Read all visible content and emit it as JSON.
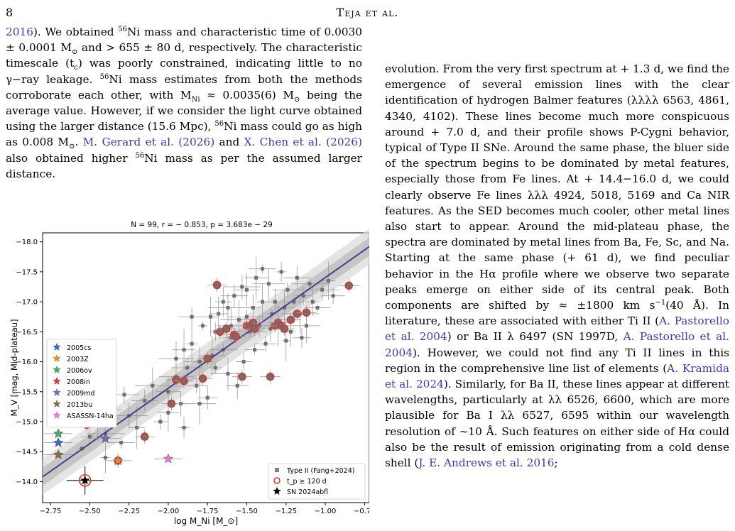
{
  "header": {
    "page_number": "8",
    "title": "Teja et al."
  },
  "left_column": [
    {
      "t": "cite",
      "v": "2016"
    },
    {
      "t": "text",
      "v": "). We obtained "
    },
    {
      "t": "sup",
      "v": "56"
    },
    {
      "t": "text",
      "v": "Ni mass and characteristic time of 0.0030 ± 0.0001 M"
    },
    {
      "t": "sub",
      "v": "⊙"
    },
    {
      "t": "text",
      "v": " and > 655 ± 80 d, respectively. The characteristic timescale (t"
    },
    {
      "t": "sub",
      "v": "c"
    },
    {
      "t": "text",
      "v": ") was poorly constrained, indicating little to no γ−ray leakage. "
    },
    {
      "t": "sup",
      "v": "56"
    },
    {
      "t": "text",
      "v": "Ni mass estimates from both the methods corroborate each other, with M"
    },
    {
      "t": "sub",
      "v": "Ni"
    },
    {
      "t": "text",
      "v": " ≈ 0.0035(6) M"
    },
    {
      "t": "sub",
      "v": "⊙"
    },
    {
      "t": "text",
      "v": " being the average value. However, if we consider the light curve obtained using the larger distance (15.6 Mpc), "
    },
    {
      "t": "sup",
      "v": "56"
    },
    {
      "t": "text",
      "v": "Ni mass could go as high as 0.008 M"
    },
    {
      "t": "sub",
      "v": "⊙"
    },
    {
      "t": "text",
      "v": ". "
    },
    {
      "t": "cite",
      "v": "M. Gerard et al. (2026)"
    },
    {
      "t": "text",
      "v": " and "
    },
    {
      "t": "cite",
      "v": "X. Chen et al. (2026)"
    },
    {
      "t": "text",
      "v": " also obtained higher "
    },
    {
      "t": "sup",
      "v": "56"
    },
    {
      "t": "text",
      "v": "Ni mass as per the assumed larger distance."
    }
  ],
  "right_column": [
    {
      "t": "text",
      "v": "evolution. From the very first spectrum at + 1.3 d, we find the emergence of several emission lines with the clear identification of hydrogen Balmer features (λλλλ 6563, 4861, 4340, 4102). These lines become much more conspicuous around + 7.0 d, and their profile shows P-Cygni behavior, typical of Type II SNe. Around the same phase, the bluer side of the spectrum begins to be dominated by metal features, especially those from Fe lines. At + 14.4−16.0 d, we could clearly observe Fe lines λλλ 4924, 5018, 5169 and Ca NIR features. As the SED becomes much cooler, other metal lines also start to appear. Around the mid-plateau phase, the spectra are dominated by metal lines from Ba, Fe, Sc, and Na. Starting at the same phase (+ 61 d), we find peculiar behavior in the Hα profile where we observe two separate peaks emerge on either side of its central peak. Both components are shifted by ≈ ±1800 km s"
    },
    {
      "t": "sup",
      "v": "−1"
    },
    {
      "t": "text",
      "v": "(40 Å). In literature, these are associated with either Ti II ("
    },
    {
      "t": "cite",
      "v": "A. Pastorello et al. 2004"
    },
    {
      "t": "text",
      "v": ") or Ba II λ 6497 (SN 1997D, "
    },
    {
      "t": "cite",
      "v": "A. Pastorello et al. 2004"
    },
    {
      "t": "text",
      "v": "). However, we could not find any Ti II lines in this region in the comprehensive line list of elements ("
    },
    {
      "t": "cite",
      "v": "A. Kramida et al. 2024"
    },
    {
      "t": "text",
      "v": "). Similarly, for Ba II, these lines appear at different wavelengths, particularly at λλ 6526, 6600, which are more plausible for Ba I λλ 6527, 6595 within our wavelength resolution of ∼10 Å. Such features on either side of Hα could also be the result of emission originating from a cold dense shell ("
    },
    {
      "t": "cite",
      "v": "J. E. Andrews et al. 2016"
    },
    {
      "t": "text",
      "v": ";"
    }
  ],
  "chart_data": {
    "type": "scatter",
    "title": "N = 99, r = − 0.853, p = 3.683e − 29",
    "xlabel": "log M_Ni [M_⊙]",
    "ylabel": "M_V [mag, Mid-plateau]",
    "xlim": [
      -2.8,
      -0.72
    ],
    "ylim": [
      -13.65,
      -18.15
    ],
    "y_inverted": true,
    "x_ticks": [
      -2.75,
      -2.5,
      -2.25,
      -2.0,
      -1.75,
      -1.5,
      -1.25,
      -1.0,
      -0.75
    ],
    "x_tick_labels": [
      "−2.75",
      "−2.50",
      "−2.25",
      "−2.00",
      "−1.75",
      "−1.50",
      "−1.25",
      "−1.00",
      "−0.75"
    ],
    "y_ticks": [
      -14.0,
      -14.5,
      -15.0,
      -15.5,
      -16.0,
      -16.5,
      -17.0,
      -17.5,
      -18.0
    ],
    "y_tick_labels": [
      "−14.0",
      "−14.5",
      "−15.0",
      "−15.5",
      "−16.0",
      "−16.5",
      "−17.0",
      "−17.5",
      "−18.0"
    ],
    "fit_line": {
      "x": [
        -2.8,
        -0.72
      ],
      "y": [
        -14.08,
        -17.92
      ],
      "color": "#4b3c8c"
    },
    "fit_band_width": 0.15,
    "grey_points": [
      [
        -2.55,
        -14.55
      ],
      [
        -2.5,
        -14.75
      ],
      [
        -2.45,
        -15.0
      ],
      [
        -2.4,
        -14.8
      ],
      [
        -2.35,
        -15.2
      ],
      [
        -2.3,
        -14.65
      ],
      [
        -2.25,
        -15.1
      ],
      [
        -2.2,
        -14.9
      ],
      [
        -2.15,
        -15.35
      ],
      [
        -2.1,
        -15.6
      ],
      [
        -2.05,
        -15.0
      ],
      [
        -2.0,
        -15.5
      ],
      [
        -1.95,
        -15.75
      ],
      [
        -1.92,
        -15.3
      ],
      [
        -1.9,
        -16.2
      ],
      [
        -1.88,
        -15.9
      ],
      [
        -1.85,
        -16.3
      ],
      [
        -1.82,
        -15.6
      ],
      [
        -1.8,
        -16.0
      ],
      [
        -1.78,
        -16.6
      ],
      [
        -1.75,
        -15.4
      ],
      [
        -1.72,
        -16.1
      ],
      [
        -1.7,
        -16.5
      ],
      [
        -1.68,
        -16.8
      ],
      [
        -1.65,
        -16.2
      ],
      [
        -1.62,
        -16.9
      ],
      [
        -1.6,
        -16.4
      ],
      [
        -1.58,
        -17.1
      ],
      [
        -1.55,
        -16.7
      ],
      [
        -1.52,
        -16.0
      ],
      [
        -1.5,
        -17.2
      ],
      [
        -1.48,
        -16.5
      ],
      [
        -1.46,
        -16.9
      ],
      [
        -1.44,
        -17.4
      ],
      [
        -1.42,
        -16.6
      ],
      [
        -1.4,
        -17.0
      ],
      [
        -1.38,
        -16.3
      ],
      [
        -1.36,
        -17.3
      ],
      [
        -1.34,
        -16.8
      ],
      [
        -1.32,
        -17.0
      ],
      [
        -1.3,
        -16.6
      ],
      [
        -1.28,
        -17.5
      ],
      [
        -1.26,
        -16.9
      ],
      [
        -1.24,
        -17.2
      ],
      [
        -1.22,
        -16.5
      ],
      [
        -1.2,
        -17.0
      ],
      [
        -1.18,
        -17.4
      ],
      [
        -1.16,
        -16.8
      ],
      [
        -1.14,
        -17.1
      ],
      [
        -1.12,
        -16.6
      ],
      [
        -1.1,
        -17.3
      ],
      [
        -1.08,
        -17.0
      ],
      [
        -1.05,
        -16.9
      ],
      [
        -1.02,
        -17.2
      ],
      [
        -0.98,
        -17.35
      ],
      [
        -0.95,
        -17.1
      ],
      [
        -1.62,
        -15.8
      ],
      [
        -1.7,
        -15.9
      ],
      [
        -1.56,
        -15.6
      ],
      [
        -1.8,
        -15.3
      ],
      [
        -1.9,
        -14.9
      ],
      [
        -2.0,
        -15.15
      ],
      [
        -2.28,
        -15.45
      ],
      [
        -2.4,
        -14.4
      ],
      [
        -1.45,
        -16.2
      ],
      [
        -1.35,
        -16.55
      ],
      [
        -1.25,
        -16.35
      ],
      [
        -1.15,
        -16.4
      ],
      [
        -1.6,
        -16.6
      ],
      [
        -1.5,
        -16.75
      ],
      [
        -1.65,
        -17.0
      ],
      [
        -1.4,
        -17.55
      ],
      [
        -1.53,
        -17.25
      ],
      [
        -1.73,
        -16.75
      ],
      [
        -1.85,
        -16.75
      ],
      [
        -1.95,
        -16.05
      ]
    ],
    "red_circles": [
      [
        -2.52,
        -14.95
      ],
      [
        -2.32,
        -14.35
      ],
      [
        -2.15,
        -14.75
      ],
      [
        -1.98,
        -15.3
      ],
      [
        -1.95,
        -15.7
      ],
      [
        -1.9,
        -15.68
      ],
      [
        -1.78,
        -15.72
      ],
      [
        -1.75,
        -16.05
      ],
      [
        -1.69,
        -17.28
      ],
      [
        -1.67,
        -16.5
      ],
      [
        -1.63,
        -16.55
      ],
      [
        -1.58,
        -16.45
      ],
      [
        -1.57,
        -16.42
      ],
      [
        -1.53,
        -15.75
      ],
      [
        -1.5,
        -16.6
      ],
      [
        -1.48,
        -16.6
      ],
      [
        -1.46,
        -16.65
      ],
      [
        -1.45,
        -16.55
      ],
      [
        -1.35,
        -15.75
      ],
      [
        -1.32,
        -16.6
      ],
      [
        -1.3,
        -16.65
      ],
      [
        -1.28,
        -16.6
      ],
      [
        -1.26,
        -16.55
      ],
      [
        -1.22,
        -16.7
      ],
      [
        -1.18,
        -16.8
      ],
      [
        -1.12,
        -16.82
      ],
      [
        -0.85,
        -17.27
      ]
    ],
    "named_sne": [
      {
        "name": "2005cs",
        "x": -2.7,
        "y": -14.65,
        "color": "#3a6bc4"
      },
      {
        "name": "2003Z",
        "x": -2.32,
        "y": -14.35,
        "color": "#e08a3c"
      },
      {
        "name": "2006ov",
        "x": -2.7,
        "y": -14.8,
        "color": "#4aa860"
      },
      {
        "name": "2008in",
        "x": -2.4,
        "y": -15.05,
        "color": "#c84040"
      },
      {
        "name": "2009md",
        "x": -2.4,
        "y": -14.72,
        "color": "#7a68c0"
      },
      {
        "name": "2013bu",
        "x": -2.7,
        "y": -14.45,
        "color": "#8a6e50"
      },
      {
        "name": "ASASSN-14ha",
        "x": -2.0,
        "y": -14.38,
        "color": "#e07ad0"
      }
    ],
    "sn2024abfl": {
      "x": -2.53,
      "y": -14.02
    },
    "legend_right": [
      {
        "label": "Type II (Fang+2024)",
        "marker": "grey-square"
      },
      {
        "label": "t_p ≥ 120 d",
        "marker": "red-circle"
      },
      {
        "label": "SN 2024abfl",
        "marker": "black-star"
      }
    ],
    "legend_left_placement": "upper-left",
    "legend_right_placement": "lower-right"
  }
}
